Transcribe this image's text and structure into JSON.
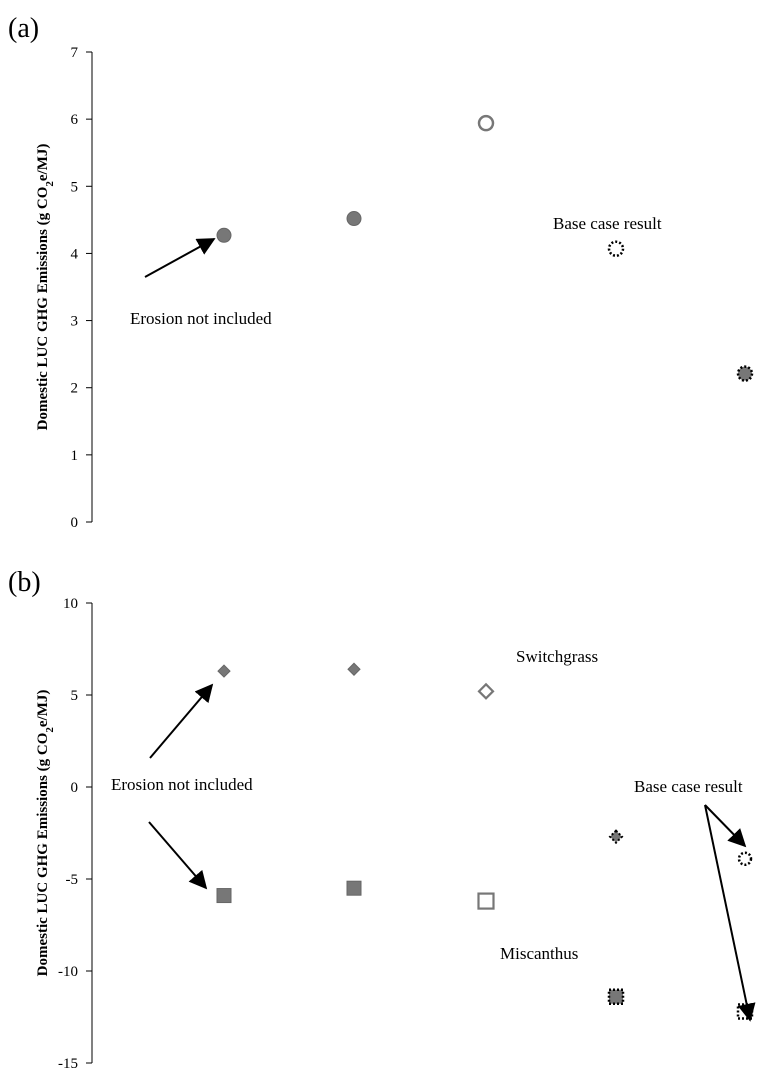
{
  "chart_data": [
    {
      "type": "scatter",
      "panel_label": "(a)",
      "ylabel": "Domestic LUC GHG Emissions (g CO2e/MJ)",
      "ylim": [
        0,
        7
      ],
      "yticks": [
        0,
        1,
        2,
        3,
        4,
        5,
        6,
        7
      ],
      "grid": false,
      "x_categories": 5,
      "series": [
        {
          "marker": "circle-filled",
          "points": [
            {
              "x": 1,
              "y": 4.27
            },
            {
              "x": 2,
              "y": 4.52
            }
          ]
        },
        {
          "marker": "circle-open",
          "points": [
            {
              "x": 3,
              "y": 5.94
            }
          ]
        },
        {
          "marker": "circle-dotted",
          "points": [
            {
              "x": 4,
              "y": 4.07
            }
          ]
        },
        {
          "marker": "circle-filled-dotted",
          "points": [
            {
              "x": 5,
              "y": 2.21
            }
          ]
        }
      ],
      "annotations": {
        "erosion": "Erosion not included",
        "base_case": "Base case result"
      }
    },
    {
      "type": "scatter",
      "panel_label": "(b)",
      "ylabel": "Domestic LUC GHG Emissions (g CO2e/MJ)",
      "ylim": [
        -15,
        10
      ],
      "yticks": [
        -15,
        -10,
        -5,
        0,
        5,
        10
      ],
      "grid": false,
      "x_categories": 5,
      "series": [
        {
          "label": "Switchgrass",
          "marker": "diamond",
          "points": [
            {
              "x": 1,
              "y": 6.3
            },
            {
              "x": 2,
              "y": 6.4
            },
            {
              "x": 3,
              "y": 5.2
            },
            {
              "x": 4,
              "y": -2.7
            },
            {
              "x": 5,
              "y": -3.9
            }
          ],
          "styles": [
            "filled",
            "filled",
            "open",
            "filled-dotted",
            "dotted-circle"
          ]
        },
        {
          "label": "Miscanthus",
          "marker": "square",
          "points": [
            {
              "x": 1,
              "y": -5.9
            },
            {
              "x": 2,
              "y": -5.5
            },
            {
              "x": 3,
              "y": -6.2
            },
            {
              "x": 4,
              "y": -11.4
            },
            {
              "x": 5,
              "y": -12.2
            }
          ],
          "styles": [
            "filled",
            "filled",
            "open",
            "filled-dotted",
            "dotted"
          ]
        }
      ],
      "annotations": {
        "erosion": "Erosion not included",
        "base_case": "Base case result"
      }
    }
  ]
}
